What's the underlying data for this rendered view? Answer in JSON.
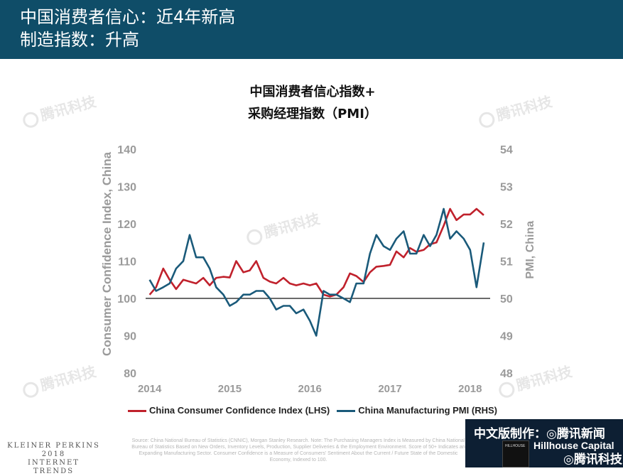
{
  "header": {
    "line1": "中国消费者信心：近4年新高",
    "line2": "制造指数：升高"
  },
  "chart_title": {
    "line1": "中国消费者信心指数+",
    "line2": "采购经理指数（PMI）"
  },
  "watermark": "腾讯科技",
  "colors": {
    "header_bg": "#0f4d68",
    "cci": "#c0212c",
    "pmi": "#1a5a7a"
  },
  "chart_data": {
    "type": "line",
    "x_ticks": [
      "2014",
      "2015",
      "2016",
      "2017",
      "2018"
    ],
    "left_axis": {
      "label": "Consumer Confidence Index, China",
      "ticks": [
        "80",
        "90",
        "100",
        "110",
        "120",
        "130",
        "140"
      ],
      "min": 80,
      "max": 140
    },
    "right_axis": {
      "label": "PMI, China",
      "ticks": [
        "48",
        "49",
        "50",
        "51",
        "52",
        "53",
        "54"
      ],
      "min": 48,
      "max": 54
    },
    "reference_line": 100,
    "series": [
      {
        "name": "China Consumer Confidence Index (LHS)",
        "axis": "left",
        "color": "#c0212c",
        "x": [
          2014.0,
          2014.08,
          2014.17,
          2014.25,
          2014.33,
          2014.42,
          2014.5,
          2014.58,
          2014.67,
          2014.75,
          2014.83,
          2014.92,
          2015.0,
          2015.08,
          2015.17,
          2015.25,
          2015.33,
          2015.42,
          2015.5,
          2015.58,
          2015.67,
          2015.75,
          2015.83,
          2015.92,
          2016.0,
          2016.08,
          2016.17,
          2016.25,
          2016.33,
          2016.42,
          2016.5,
          2016.58,
          2016.67,
          2016.75,
          2016.83,
          2016.92,
          2017.0,
          2017.08,
          2017.17,
          2017.25,
          2017.33,
          2017.42,
          2017.5,
          2017.58,
          2017.67,
          2017.75,
          2017.83,
          2017.92,
          2018.0,
          2018.08,
          2018.17
        ],
        "values": [
          101,
          103,
          108,
          105,
          102.5,
          105,
          104.5,
          104,
          105.5,
          103.5,
          105.5,
          105.8,
          105.6,
          110,
          107,
          107.5,
          110,
          105.5,
          104.5,
          104,
          105.5,
          104,
          103.5,
          104,
          103.5,
          104,
          101,
          100.5,
          101,
          103,
          106.7,
          106,
          104.4,
          107,
          108.5,
          108.7,
          109,
          112.6,
          111,
          113.5,
          112.5,
          113,
          114.5,
          115,
          119.5,
          124,
          121,
          122.5,
          122.5,
          124,
          122.3
        ]
      },
      {
        "name": "China Manufacturing PMI (RHS)",
        "axis": "right",
        "color": "#1a5a7a",
        "x": [
          2014.0,
          2014.08,
          2014.17,
          2014.25,
          2014.33,
          2014.42,
          2014.5,
          2014.58,
          2014.67,
          2014.75,
          2014.83,
          2014.92,
          2015.0,
          2015.08,
          2015.17,
          2015.25,
          2015.33,
          2015.42,
          2015.5,
          2015.58,
          2015.67,
          2015.75,
          2015.83,
          2015.92,
          2016.0,
          2016.08,
          2016.17,
          2016.25,
          2016.33,
          2016.42,
          2016.5,
          2016.58,
          2016.67,
          2016.75,
          2016.83,
          2016.92,
          2017.0,
          2017.08,
          2017.17,
          2017.25,
          2017.33,
          2017.42,
          2017.5,
          2017.58,
          2017.67,
          2017.75,
          2017.83,
          2017.92,
          2018.0,
          2018.08,
          2018.17
        ],
        "values": [
          50.5,
          50.2,
          50.3,
          50.4,
          50.8,
          51.0,
          51.7,
          51.1,
          51.1,
          50.8,
          50.3,
          50.1,
          49.8,
          49.9,
          50.1,
          50.1,
          50.2,
          50.2,
          50.0,
          49.7,
          49.8,
          49.8,
          49.6,
          49.7,
          49.4,
          49.0,
          50.2,
          50.1,
          50.1,
          50.0,
          49.9,
          50.4,
          50.4,
          51.2,
          51.7,
          51.4,
          51.3,
          51.6,
          51.8,
          51.2,
          51.2,
          51.7,
          51.4,
          51.7,
          52.4,
          51.6,
          51.8,
          51.6,
          51.3,
          50.3,
          51.5
        ]
      }
    ],
    "xlim": [
      2013.95,
      2018.25
    ],
    "grid": false
  },
  "footer": {
    "kp_line1": "KLEINER PERKINS",
    "kp_line2": "2018",
    "kp_line3": "INTERNET TRENDS",
    "source": "Source: China National Bureau of Statistics (CNNIC), Morgan Stanley Research. Note: The Purchasing Managers Index is Measured by China National Bureau of Statistics Based on New Orders, Inventory Levels, Production, Supplier Deliveries & the Employment Environment. Score of 50+ Indicates an Expanding Manufacturing Sector. Consumer Confidence is a Measure of Consumers' Sentiment About the Current / Future State of the Domestic Economy, Indexed to 100.",
    "brand_cn": "中文版制作：◎腾讯新闻",
    "hillhouse_box": "HILLHOUSE",
    "hillhouse": "Hillhouse Capital",
    "tencent_tech": "◎腾讯科技"
  }
}
